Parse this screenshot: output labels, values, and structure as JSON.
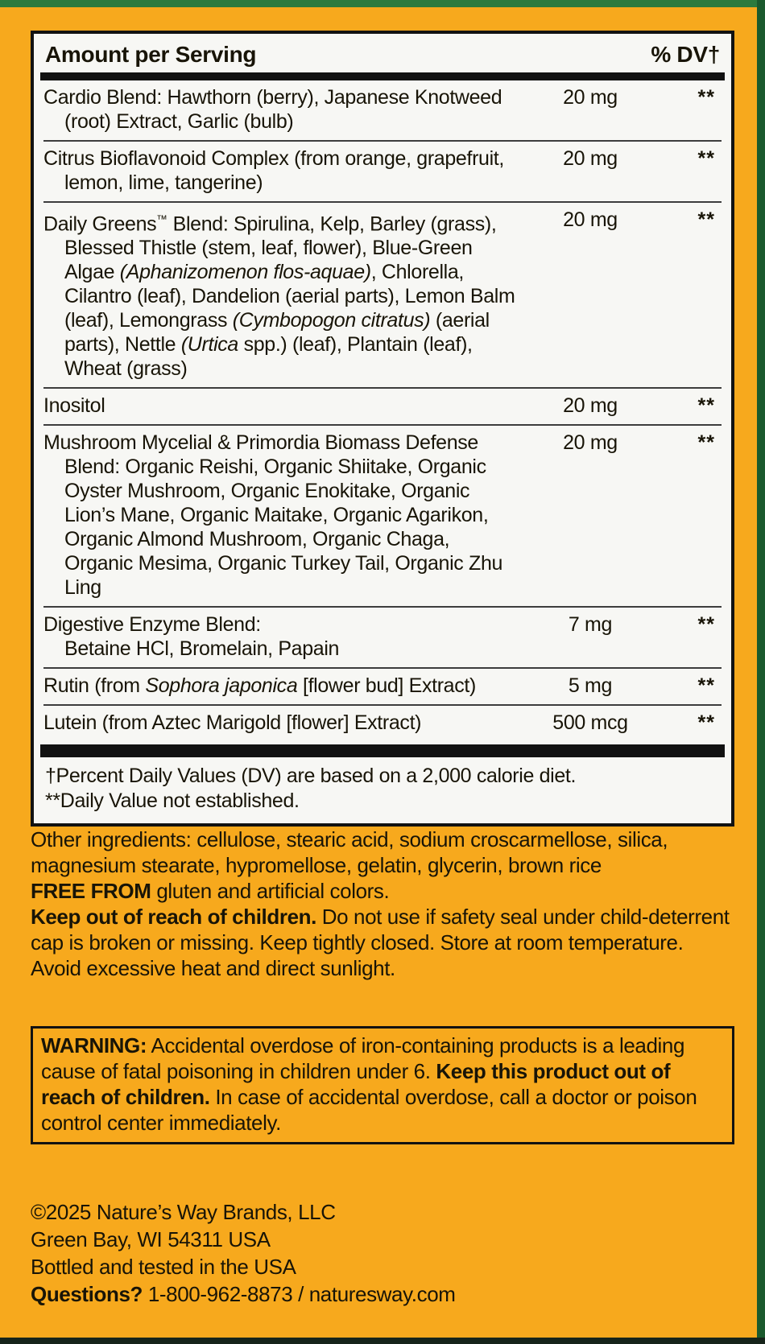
{
  "colors": {
    "label_bg": "#F7A91D",
    "trim_green_top": "#2C7A3E",
    "trim_green_right": "#1B5A2E",
    "trim_dark_bottom": "#16241A",
    "panel_bg": "#F7F7F4",
    "ink": "#181407"
  },
  "panel": {
    "header_left": "Amount per Serving",
    "header_right": "% DV†",
    "rows": [
      {
        "segments": [
          {
            "t": "Cardio Blend: Hawthorn (berry), Japanese Knotweed (root) Extract, Garlic (bulb)"
          }
        ],
        "amount": "20 mg",
        "dv": "**"
      },
      {
        "segments": [
          {
            "t": "Citrus Bioflavonoid Complex (from orange, grapefruit, lemon, lime, tangerine)"
          }
        ],
        "amount": "20 mg",
        "dv": "**"
      },
      {
        "segments": [
          {
            "t": "Daily Greens"
          },
          {
            "t": "™",
            "sup": true
          },
          {
            "t": " Blend: Spirulina, Kelp, Barley (grass), Blessed Thistle (stem, leaf, flower), Blue-Green Algae "
          },
          {
            "t": "(Aphanizomenon flos-aquae)",
            "i": true
          },
          {
            "t": ", Chlorella, Cilantro (leaf), Dandelion (aerial parts), Lemon Balm (leaf), Lemongrass "
          },
          {
            "t": "(Cymbopogon citratus)",
            "i": true
          },
          {
            "t": " (aerial parts), Nettle "
          },
          {
            "t": "(Urtica",
            "i": true
          },
          {
            "t": " spp.) (leaf), Plantain (leaf), Wheat (grass)"
          }
        ],
        "amount": "20 mg",
        "dv": "**"
      },
      {
        "segments": [
          {
            "t": "Inositol"
          }
        ],
        "amount": "20 mg",
        "dv": "**"
      },
      {
        "segments": [
          {
            "t": "Mushroom Mycelial & Primordia Biomass Defense Blend: Organic Reishi, Organic Shiitake, Organic Oyster Mushroom, Organic Enokitake, Organic Lion’s Mane, Organic Maitake, Organic Agarikon, Organic Almond Mushroom, Organic Chaga, Organic Mesima, Organic Turkey Tail, Organic Zhu Ling"
          }
        ],
        "amount": "20 mg",
        "dv": "**"
      },
      {
        "segments": [
          {
            "t": "Digestive Enzyme Blend:"
          },
          {
            "br": true
          },
          {
            "t": "Betaine HCl, Bromelain, Papain"
          }
        ],
        "amount": "7 mg",
        "dv": "**"
      },
      {
        "segments": [
          {
            "t": "Rutin (from "
          },
          {
            "t": "Sophora japonica",
            "i": true
          },
          {
            "t": " [flower bud] Extract)"
          }
        ],
        "amount": "5 mg",
        "dv": "**"
      },
      {
        "segments": [
          {
            "t": "Lutein (from Aztec Marigold [flower] Extract)"
          }
        ],
        "amount": "500 mcg",
        "dv": "**"
      }
    ],
    "footnotes": [
      "†Percent Daily Values (DV) are based on a 2,000 calorie diet.",
      "**Daily Value not established."
    ]
  },
  "sections": {
    "other_ingredients": [
      {
        "t": "Other ingredients: cellulose, stearic acid, sodium croscarmellose, silica, magnesium stearate, hypromellose, gelatin, glycerin, brown rice"
      }
    ],
    "free_from": [
      {
        "t": "FREE FROM",
        "b": true
      },
      {
        "t": " gluten and artificial colors."
      }
    ],
    "keep_out": [
      {
        "t": "Keep out of reach of children.",
        "b": true
      },
      {
        "t": " Do not use if safety seal under child-deterrent cap is broken or missing. Keep tightly closed. Store at room temperature. Avoid excessive heat and direct sunlight."
      }
    ],
    "warning": [
      {
        "t": "WARNING:",
        "b": true
      },
      {
        "t": " Accidental overdose of iron-containing products is a leading cause of fatal poisoning in children under 6. "
      },
      {
        "t": "Keep this product out of reach of children.",
        "b": true
      },
      {
        "t": " In case of accidental overdose, call a doctor or poison control center immediately."
      }
    ],
    "footer_lines": [
      [
        {
          "t": "©2025 Nature’s Way Brands, LLC"
        }
      ],
      [
        {
          "t": "Green Bay, WI 54311 USA"
        }
      ],
      [
        {
          "t": "Bottled and tested in the USA"
        }
      ],
      [
        {
          "t": "Questions?",
          "b": true
        },
        {
          "t": " 1-800-962-8873 / naturesway.com"
        }
      ]
    ]
  }
}
